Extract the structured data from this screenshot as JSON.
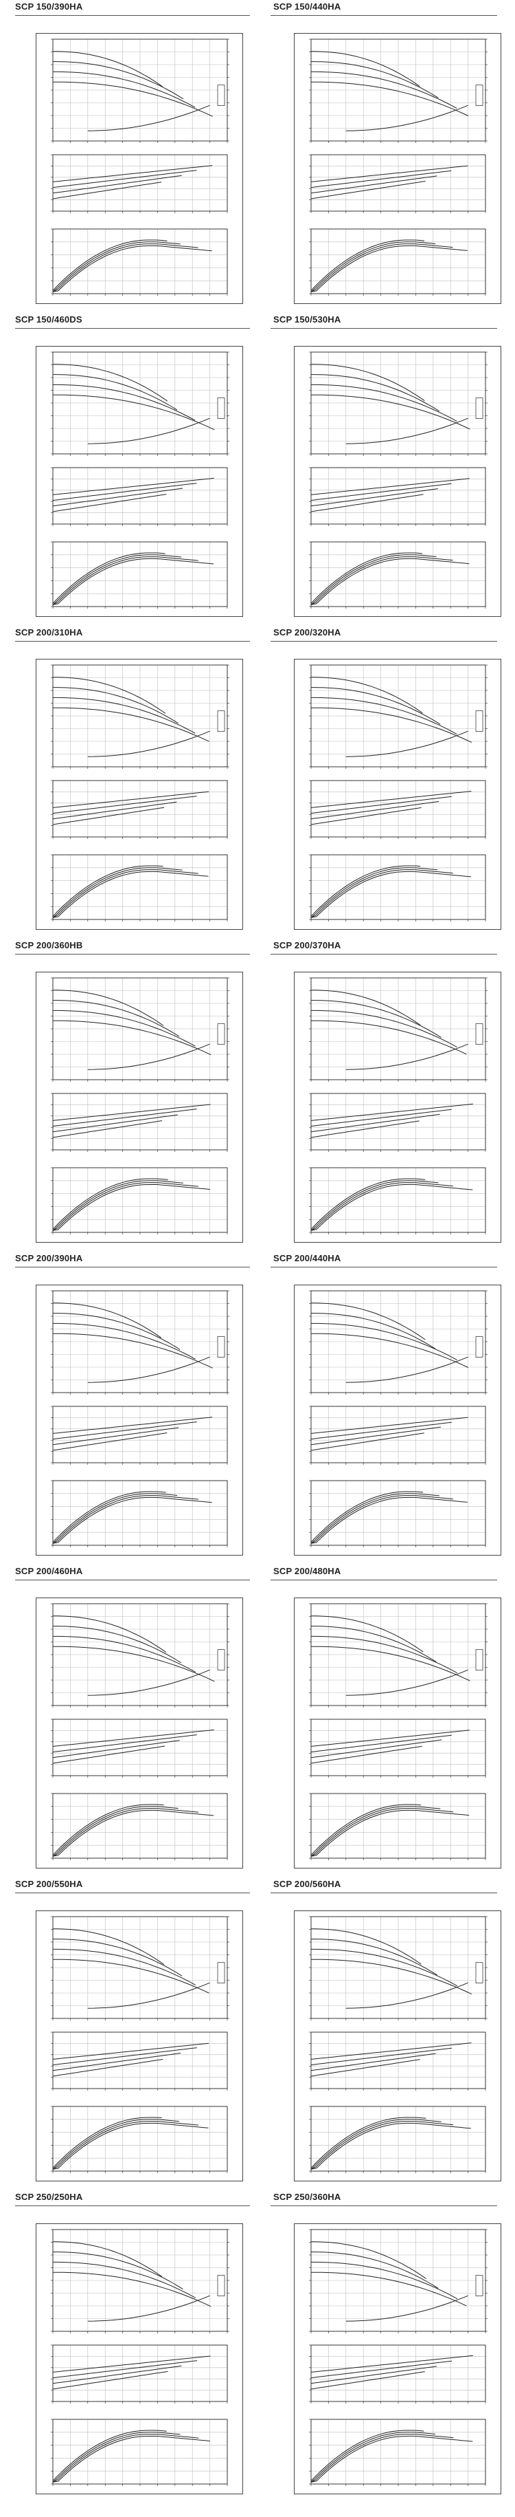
{
  "line_color": "#222222",
  "grid_color": "#bdbdbd",
  "panels": [
    {
      "title": "SCP 150/390HA"
    },
    {
      "title": "SCP 150/440HA"
    },
    {
      "title": "SCP 150/460DS"
    },
    {
      "title": "SCP 150/530HA"
    },
    {
      "title": "SCP 200/310HA"
    },
    {
      "title": "SCP 200/320HA"
    },
    {
      "title": "SCP 200/360HB"
    },
    {
      "title": "SCP 200/370HA"
    },
    {
      "title": "SCP 200/390HA"
    },
    {
      "title": "SCP 200/440HA"
    },
    {
      "title": "SCP 200/460HA"
    },
    {
      "title": "SCP 200/480HA"
    },
    {
      "title": "SCP 200/550HA"
    },
    {
      "title": "SCP 200/560HA"
    },
    {
      "title": "SCP 250/250HA"
    },
    {
      "title": "SCP 250/360HA"
    }
  ],
  "chart_data": {
    "type": "line",
    "note": "Each panel shows three stacked pump performance sub-charts (head, shaft power, efficiency vs. flow). Axis and curve labels are too small to read in the source image, so only the chart type is recorded.",
    "subcharts": [
      "head",
      "shaft-power",
      "efficiency"
    ]
  }
}
